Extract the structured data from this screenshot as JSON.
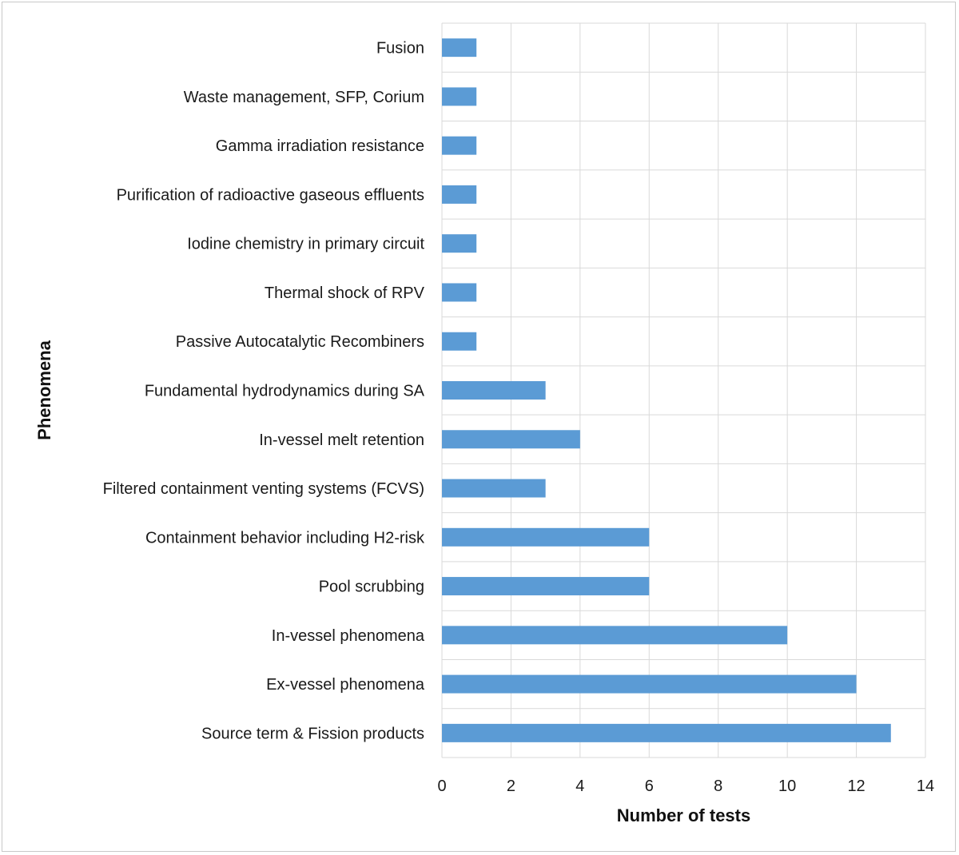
{
  "chart_data": {
    "type": "bar",
    "orientation": "horizontal",
    "categories": [
      "Fusion",
      "Waste management, SFP, Corium",
      "Gamma irradiation resistance",
      "Purification of radioactive gaseous effluents",
      "Iodine chemistry in primary circuit",
      "Thermal shock of RPV",
      "Passive Autocatalytic Recombiners",
      "Fundamental hydrodynamics during SA",
      "In-vessel melt retention",
      "Filtered containment venting systems (FCVS)",
      "Containment behavior including H2-risk",
      "Pool scrubbing",
      "In-vessel phenomena",
      "Ex-vessel phenomena",
      "Source term & Fission products"
    ],
    "values": [
      1,
      1,
      1,
      1,
      1,
      1,
      1,
      3,
      4,
      3,
      6,
      6,
      10,
      12,
      13
    ],
    "xlabel": "Number of tests",
    "ylabel": "Phenomena",
    "xlim": [
      0,
      14
    ],
    "xticks": [
      "0",
      "2",
      "4",
      "6",
      "8",
      "10",
      "12",
      "14"
    ],
    "grid": true,
    "legend": "none",
    "bar_color": "#5b9bd5",
    "grid_color": "#d9d9d9"
  }
}
